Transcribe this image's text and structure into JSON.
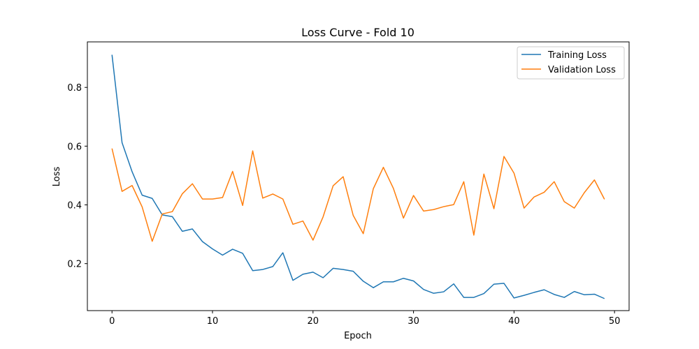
{
  "chart_data": {
    "type": "line",
    "title": "Loss Curve - Fold 10",
    "xlabel": "Epoch",
    "ylabel": "Loss",
    "xlim": [
      -2.45,
      51.45
    ],
    "ylim": [
      0.04,
      0.955
    ],
    "xticks": [
      0,
      10,
      20,
      30,
      40,
      50
    ],
    "yticks": [
      0.2,
      0.4,
      0.6,
      0.8
    ],
    "xtick_labels": [
      "0",
      "10",
      "20",
      "30",
      "40",
      "50"
    ],
    "ytick_labels": [
      "0.2",
      "0.4",
      "0.6",
      "0.8"
    ],
    "grid": false,
    "legend_position": "top-right",
    "series": [
      {
        "name": "Training Loss",
        "color": "#1f77b4",
        "x": [
          0,
          1,
          2,
          3,
          4,
          5,
          6,
          7,
          8,
          9,
          10,
          11,
          12,
          13,
          14,
          15,
          16,
          17,
          18,
          19,
          20,
          21,
          22,
          23,
          24,
          25,
          26,
          27,
          28,
          29,
          30,
          31,
          32,
          33,
          34,
          35,
          36,
          37,
          38,
          39,
          40,
          41,
          42,
          43,
          44,
          45,
          46,
          47,
          48,
          49
        ],
        "values": [
          0.911,
          0.612,
          0.513,
          0.433,
          0.422,
          0.366,
          0.36,
          0.31,
          0.318,
          0.275,
          0.25,
          0.229,
          0.249,
          0.235,
          0.176,
          0.18,
          0.19,
          0.237,
          0.143,
          0.164,
          0.171,
          0.152,
          0.184,
          0.18,
          0.174,
          0.14,
          0.118,
          0.138,
          0.138,
          0.15,
          0.141,
          0.112,
          0.099,
          0.104,
          0.131,
          0.085,
          0.085,
          0.098,
          0.13,
          0.133,
          0.083,
          0.092,
          0.102,
          0.111,
          0.095,
          0.085,
          0.105,
          0.094,
          0.096,
          0.081
        ]
      },
      {
        "name": "Validation Loss",
        "color": "#ff7f0e",
        "x": [
          0,
          1,
          2,
          3,
          4,
          5,
          6,
          7,
          8,
          9,
          10,
          11,
          12,
          13,
          14,
          15,
          16,
          17,
          18,
          19,
          20,
          21,
          22,
          23,
          24,
          25,
          26,
          27,
          28,
          29,
          30,
          31,
          32,
          33,
          34,
          35,
          36,
          37,
          38,
          39,
          40,
          41,
          42,
          43,
          44,
          45,
          46,
          47,
          48,
          49
        ],
        "values": [
          0.592,
          0.446,
          0.466,
          0.393,
          0.276,
          0.369,
          0.377,
          0.438,
          0.472,
          0.42,
          0.42,
          0.425,
          0.514,
          0.398,
          0.584,
          0.423,
          0.437,
          0.42,
          0.334,
          0.345,
          0.28,
          0.359,
          0.465,
          0.496,
          0.364,
          0.302,
          0.455,
          0.528,
          0.456,
          0.355,
          0.432,
          0.379,
          0.384,
          0.394,
          0.401,
          0.479,
          0.297,
          0.505,
          0.387,
          0.565,
          0.508,
          0.389,
          0.427,
          0.443,
          0.479,
          0.411,
          0.389,
          0.442,
          0.485,
          0.419
        ]
      }
    ]
  }
}
